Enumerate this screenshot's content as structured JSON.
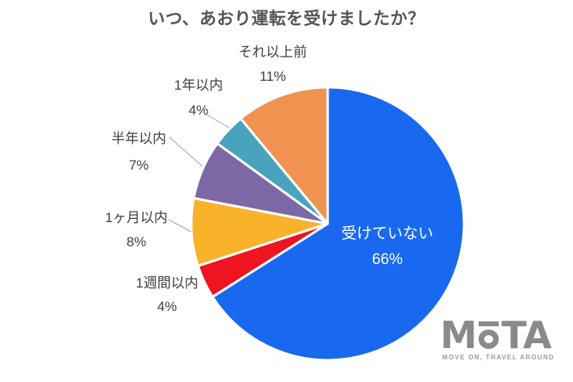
{
  "title": "いつ、あおり運転を受けましたか？",
  "chart_data": {
    "type": "pie",
    "title": "いつ、あおり運転を受けましたか？",
    "start_angle": "top",
    "direction": "clockwise",
    "legend": "none",
    "slices": [
      {
        "label": "受けていない",
        "value": 66,
        "pct": "66%",
        "color": "#1969F0",
        "label_position": "inside"
      },
      {
        "label": "1週間以内",
        "value": 4,
        "pct": "4%",
        "color": "#EE1420",
        "label_position": "outside"
      },
      {
        "label": "1ヶ月以内",
        "value": 8,
        "pct": "8%",
        "color": "#F9B32B",
        "label_position": "outside"
      },
      {
        "label": "半年以内",
        "value": 7,
        "pct": "7%",
        "color": "#7B68A4",
        "label_position": "outside"
      },
      {
        "label": "1年以内",
        "value": 4,
        "pct": "4%",
        "color": "#4AA3BC",
        "label_position": "outside"
      },
      {
        "label": "それ以上前",
        "value": 11,
        "pct": "11%",
        "color": "#F09250",
        "label_position": "outside"
      }
    ],
    "slice_gap_color": "#ffffff",
    "leader_line_color": "#a0a0a0"
  },
  "logo": {
    "brand": "MOTA",
    "text_before_o": "M",
    "text_after_o": "TA",
    "tagline": "MOVE ON, TRAVEL AROUND",
    "color": "#8a8a8a"
  }
}
